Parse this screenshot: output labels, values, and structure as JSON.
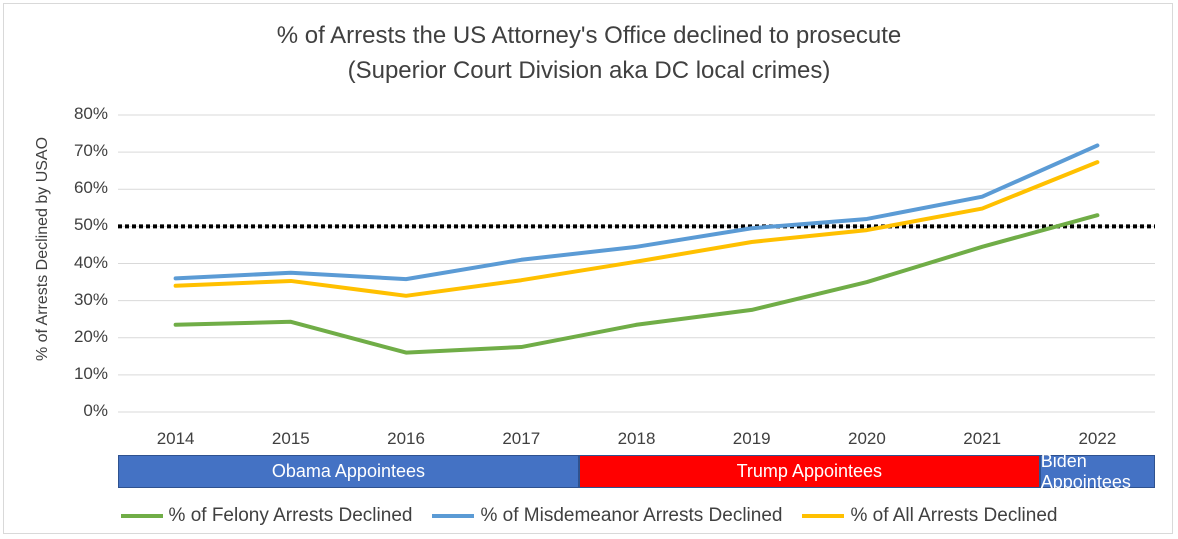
{
  "chart_data": {
    "type": "line",
    "title": "% of Arrests the US Attorney's Office declined to prosecute",
    "subtitle": "(Superior Court Division aka DC local crimes)",
    "ylabel": "% of Arrests Declined by USAO",
    "xlabel": "",
    "ylim": [
      0,
      80
    ],
    "yticks": [
      "0%",
      "10%",
      "20%",
      "30%",
      "40%",
      "50%",
      "60%",
      "70%",
      "80%"
    ],
    "categories": [
      "2014",
      "2015",
      "2016",
      "2017",
      "2018",
      "2019",
      "2020",
      "2021",
      "2022"
    ],
    "series": [
      {
        "name": "% of Felony Arrests Declined",
        "color": "#70ad47",
        "values": [
          23.5,
          24.3,
          16,
          17.5,
          23.5,
          27.5,
          35,
          44.5,
          53
        ]
      },
      {
        "name": "% of Misdemeanor Arrests Declined",
        "color": "#5b9bd5",
        "values": [
          36,
          37.5,
          35.8,
          41,
          44.5,
          49.5,
          52,
          58,
          71.8
        ]
      },
      {
        "name": "% of All Arrests Declined",
        "color": "#ffc000",
        "values": [
          34,
          35.3,
          31.3,
          35.5,
          40.5,
          45.8,
          49,
          54.8,
          67.3
        ]
      }
    ],
    "reference_line": {
      "value": 50,
      "style": "dotted",
      "color": "#000000"
    },
    "grid": true,
    "legend_position": "bottom",
    "appointee_bands": [
      {
        "label": "Obama Appointees",
        "color": "#4472c4",
        "from": "2014",
        "to": "2017"
      },
      {
        "label": "Trump Appointees",
        "color": "#ff0000",
        "from": "2018",
        "to": "2021"
      },
      {
        "label": "Biden Appointees",
        "color": "#4472c4",
        "from": "2022",
        "to": "2022"
      }
    ]
  }
}
